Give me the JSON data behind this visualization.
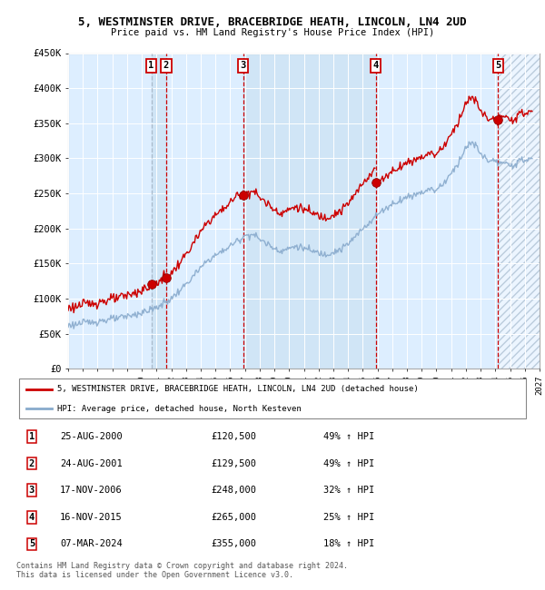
{
  "title": "5, WESTMINSTER DRIVE, BRACEBRIDGE HEATH, LINCOLN, LN4 2UD",
  "subtitle": "Price paid vs. HM Land Registry's House Price Index (HPI)",
  "sales": [
    {
      "num": 1,
      "date_dec": 2000.648,
      "price": 120500
    },
    {
      "num": 2,
      "date_dec": 2001.648,
      "price": 129500
    },
    {
      "num": 3,
      "date_dec": 2006.877,
      "price": 248000
    },
    {
      "num": 4,
      "date_dec": 2015.877,
      "price": 265000
    },
    {
      "num": 5,
      "date_dec": 2024.178,
      "price": 355000
    }
  ],
  "table_rows": [
    {
      "num": 1,
      "date": "25-AUG-2000",
      "price": "£120,500",
      "hpi": "49% ↑ HPI"
    },
    {
      "num": 2,
      "date": "24-AUG-2001",
      "price": "£129,500",
      "hpi": "49% ↑ HPI"
    },
    {
      "num": 3,
      "date": "17-NOV-2006",
      "price": "£248,000",
      "hpi": "32% ↑ HPI"
    },
    {
      "num": 4,
      "date": "16-NOV-2015",
      "price": "£265,000",
      "hpi": "25% ↑ HPI"
    },
    {
      "num": 5,
      "date": "07-MAR-2024",
      "price": "£355,000",
      "hpi": "18% ↑ HPI"
    }
  ],
  "legend1": "5, WESTMINSTER DRIVE, BRACEBRIDGE HEATH, LINCOLN, LN4 2UD (detached house)",
  "legend2": "HPI: Average price, detached house, North Kesteven",
  "footer1": "Contains HM Land Registry data © Crown copyright and database right 2024.",
  "footer2": "This data is licensed under the Open Government Licence v3.0.",
  "red_color": "#cc0000",
  "blue_color": "#88aacc",
  "bg_color": "#ddeeff",
  "ylim": [
    0,
    450000
  ],
  "ytick_vals": [
    0,
    50000,
    100000,
    150000,
    200000,
    250000,
    300000,
    350000,
    400000,
    450000
  ],
  "ytick_labels": [
    "£0",
    "£50K",
    "£100K",
    "£150K",
    "£200K",
    "£250K",
    "£300K",
    "£350K",
    "£400K",
    "£450K"
  ],
  "xmin": 1995,
  "xmax": 2027
}
